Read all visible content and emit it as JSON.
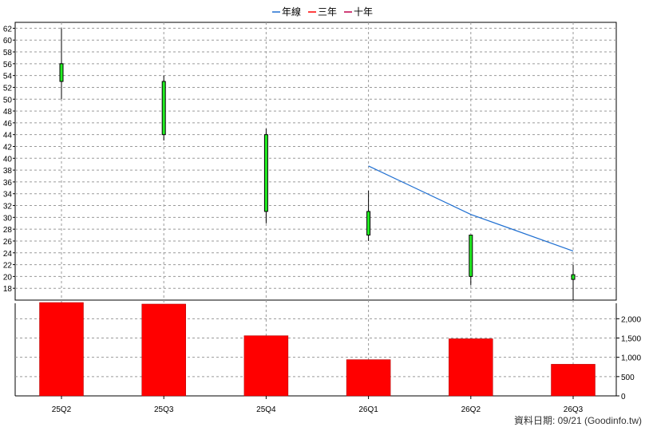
{
  "legend": [
    {
      "label": "年線",
      "color": "#1f6fd1"
    },
    {
      "label": "三年",
      "color": "#ff0000"
    },
    {
      "label": "十年",
      "color": "#c0004a"
    }
  ],
  "footer": "資料日期: 09/21  (Goodinfo.tw)",
  "chart_data": [
    {
      "type": "candlestick",
      "categories": [
        "25Q2",
        "25Q3",
        "25Q4",
        "26Q1",
        "26Q2",
        "26Q3"
      ],
      "ohlc": [
        {
          "open": 53,
          "high": 62,
          "low": 50,
          "close": 56
        },
        {
          "open": 44,
          "high": 54,
          "low": 43,
          "close": 53
        },
        {
          "open": 31,
          "high": 45,
          "low": 29,
          "close": 44
        },
        {
          "open": 27,
          "high": 34.5,
          "low": 26,
          "close": 31
        },
        {
          "open": 20,
          "high": 27,
          "low": 18.5,
          "close": 27
        },
        {
          "open": 19.5,
          "high": 22,
          "low": 16,
          "close": 20.3
        }
      ],
      "yticks": [
        18,
        20,
        22,
        24,
        26,
        28,
        30,
        32,
        34,
        36,
        38,
        40,
        42,
        44,
        46,
        48,
        50,
        52,
        54,
        56,
        58,
        60,
        62
      ],
      "ylim": [
        16,
        63
      ],
      "candle_color": "#22ee22",
      "grid": true,
      "series": [
        {
          "name": "年線",
          "x": [
            "26Q1",
            "26Q2",
            "26Q3"
          ],
          "values": [
            38.7,
            30.5,
            24.3
          ],
          "color": "#1f6fd1"
        }
      ]
    },
    {
      "type": "bar",
      "categories": [
        "25Q2",
        "25Q3",
        "25Q4",
        "26Q1",
        "26Q2",
        "26Q3"
      ],
      "values": [
        2420,
        2380,
        1560,
        940,
        1480,
        820
      ],
      "yticks": [
        0,
        500,
        1000,
        1500,
        2000
      ],
      "ytick_labels": [
        "0",
        "500",
        "1,000",
        "1,500",
        "2,000"
      ],
      "ylim": [
        0,
        2400
      ],
      "color": "#ff0000",
      "grid": true
    }
  ]
}
